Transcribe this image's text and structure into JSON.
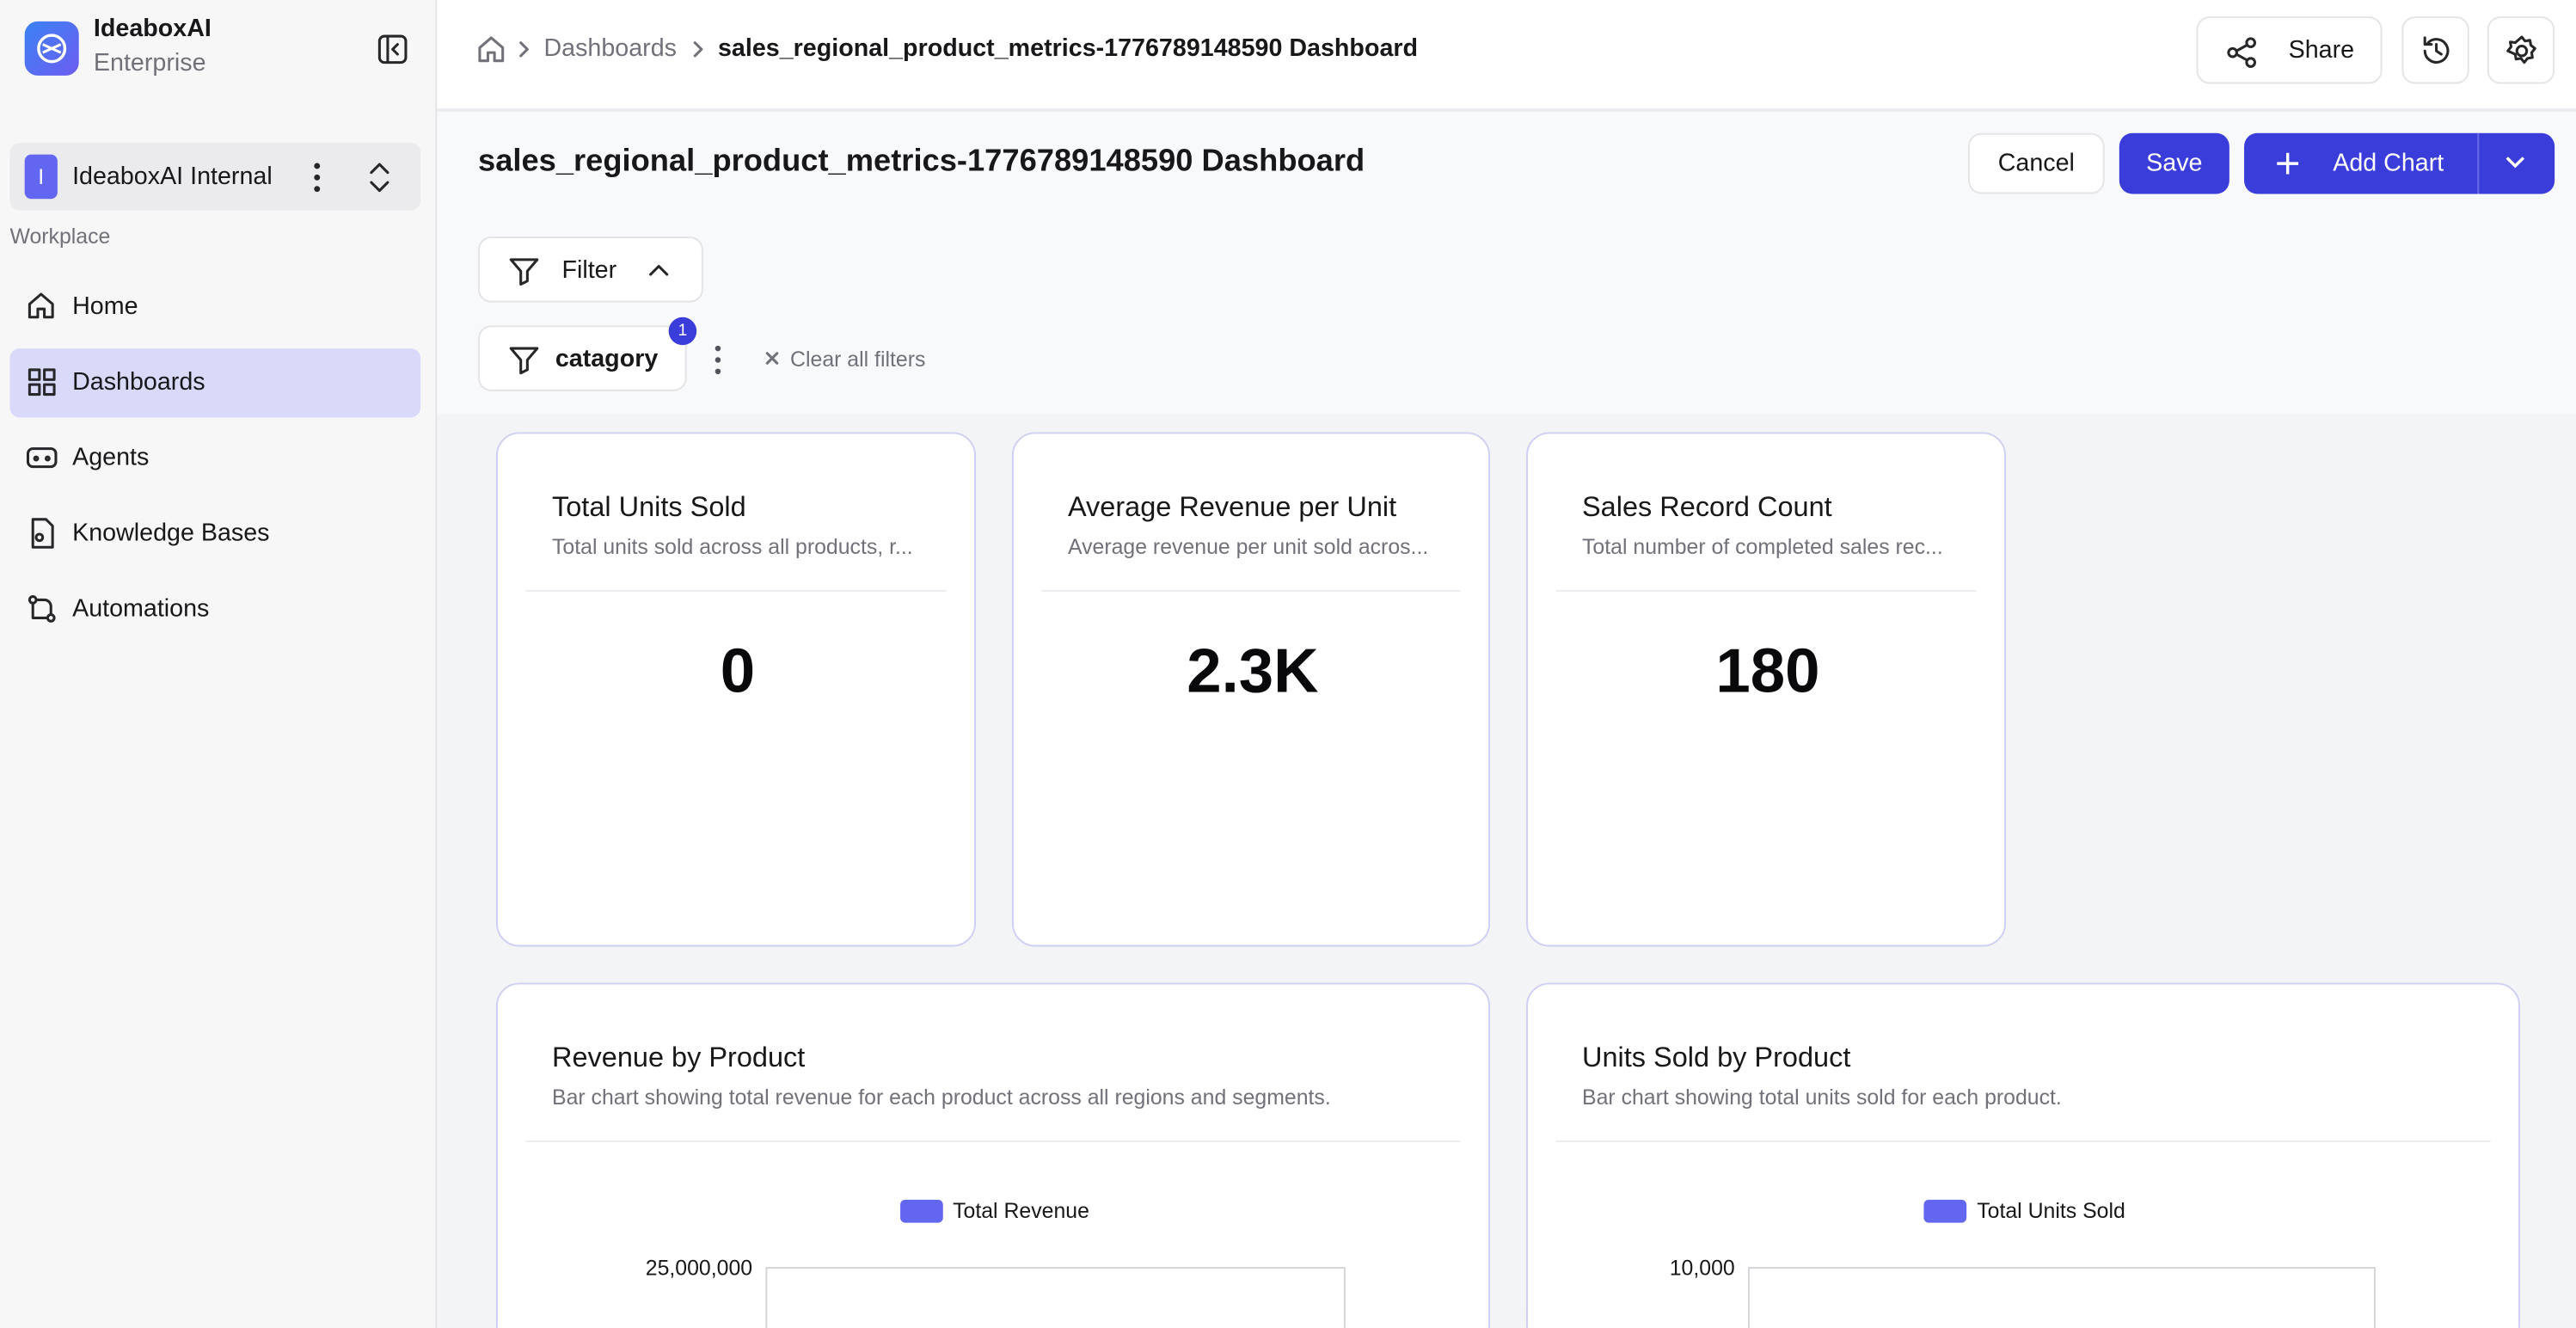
{
  "brand": {
    "name": "IdeaboxAI",
    "plan": "Enterprise"
  },
  "workspace": {
    "initial": "I",
    "name": "IdeaboxAI Internal"
  },
  "nav": {
    "section": "Workplace",
    "items": [
      "Home",
      "Dashboards",
      "Agents",
      "Knowledge Bases",
      "Automations"
    ],
    "active": 1
  },
  "breadcrumb": [
    "Dashboards",
    "sales_regional_product_metrics-1776789148590 Dashboard"
  ],
  "toolbar": {
    "share": "Share"
  },
  "page": {
    "title": "sales_regional_product_metrics-1776789148590 Dashboard",
    "cancel": "Cancel",
    "save": "Save",
    "add_chart": "Add Chart"
  },
  "filters": {
    "toggle": "Filter",
    "chip": "catagory",
    "count": 1,
    "clear": "Clear all filters"
  },
  "kpis": [
    {
      "title": "Total Units Sold",
      "description": "Total units sold across all products, r...",
      "value": 0
    },
    {
      "title": "Average Revenue per Unit",
      "description": "Average revenue per unit sold acros...",
      "value": "2.3K"
    },
    {
      "title": "Sales Record Count",
      "description": "Total number of completed sales rec...",
      "value": 180
    }
  ],
  "charts": [
    {
      "title": "Revenue by Product",
      "description": "Bar chart showing total revenue for each product across all regions and segments.",
      "legend": "Total Revenue",
      "top_tick": "25,000,000"
    },
    {
      "title": "Units Sold by Product",
      "description": "Bar chart showing total units sold for each product.",
      "legend": "Total Units Sold",
      "top_tick": "10,000"
    }
  ]
}
